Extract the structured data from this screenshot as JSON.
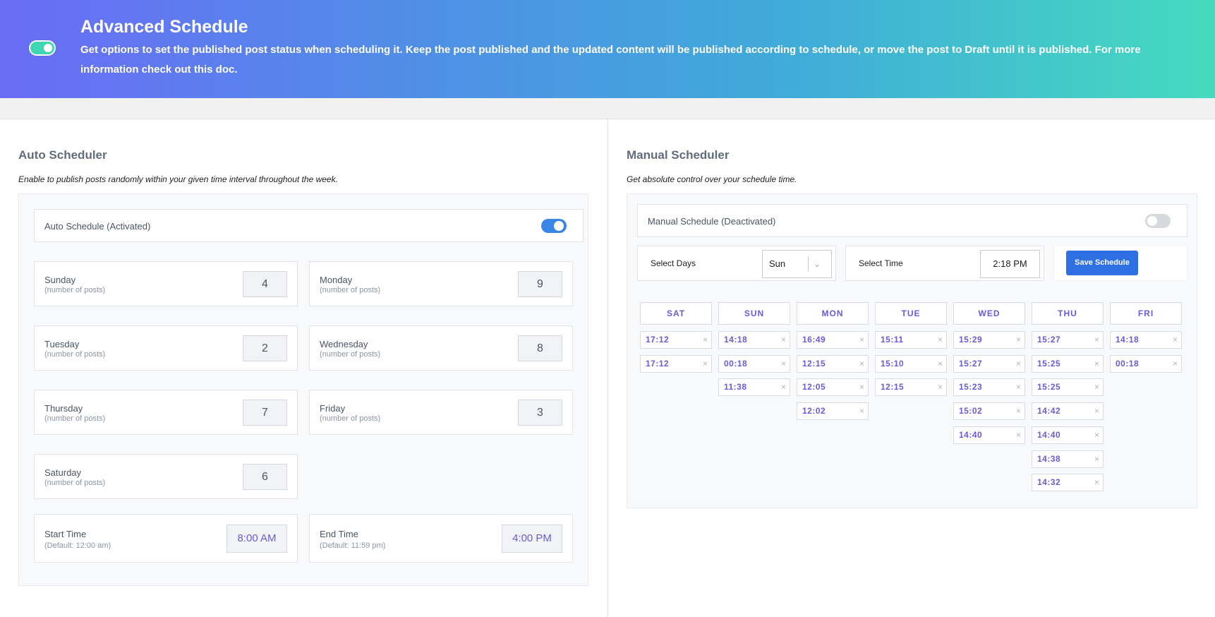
{
  "banner": {
    "title": "Advanced Schedule",
    "description": "Get options to set the published post status when scheduling it. Keep the post published and the updated content will be published according to schedule, or move the post to Draft until it is published. For more information check out this doc.",
    "toggle_on": true
  },
  "auto": {
    "title": "Auto Scheduler",
    "description": "Enable to publish posts randomly within your given time interval throughout the week.",
    "status_label": "Auto Schedule (Activated)",
    "status_on": true,
    "days": [
      {
        "name": "Sunday",
        "sub": "(number of posts)",
        "value": "4"
      },
      {
        "name": "Monday",
        "sub": "(number of posts)",
        "value": "9"
      },
      {
        "name": "Tuesday",
        "sub": "(number of posts)",
        "value": "2"
      },
      {
        "name": "Wednesday",
        "sub": "(number of posts)",
        "value": "8"
      },
      {
        "name": "Thursday",
        "sub": "(number of posts)",
        "value": "7"
      },
      {
        "name": "Friday",
        "sub": "(number of posts)",
        "value": "3"
      },
      {
        "name": "Saturday",
        "sub": "(number of posts)",
        "value": "6"
      }
    ],
    "start": {
      "label": "Start Time",
      "sub": "(Default: 12:00 am)",
      "value": "8:00 AM"
    },
    "end": {
      "label": "End Time",
      "sub": "(Default: 11:59 pm)",
      "value": "4:00 PM"
    }
  },
  "manual": {
    "title": "Manual Scheduler",
    "description": "Get absolute control over your schedule time.",
    "status_label": "Manual Schedule (Deactivated)",
    "status_on": false,
    "select_days_label": "Select Days",
    "select_days_value": "Sun",
    "select_time_label": "Select Time",
    "select_time_value": "2:18 PM",
    "save_label": "Save Schedule",
    "columns": [
      {
        "day": "SAT",
        "slots": [
          "17:12",
          "17:12"
        ]
      },
      {
        "day": "SUN",
        "slots": [
          "14:18",
          "00:18",
          "11:38"
        ]
      },
      {
        "day": "MON",
        "slots": [
          "16:49",
          "12:15",
          "12:05",
          "12:02"
        ]
      },
      {
        "day": "TUE",
        "slots": [
          "15:11",
          "15:10",
          "12:15"
        ]
      },
      {
        "day": "WED",
        "slots": [
          "15:29",
          "15:27",
          "15:23",
          "15:02",
          "14:40"
        ]
      },
      {
        "day": "THU",
        "slots": [
          "15:27",
          "15:25",
          "15:25",
          "14:42",
          "14:40",
          "14:38",
          "14:32"
        ]
      },
      {
        "day": "FRI",
        "slots": [
          "14:18",
          "00:18"
        ]
      }
    ]
  }
}
